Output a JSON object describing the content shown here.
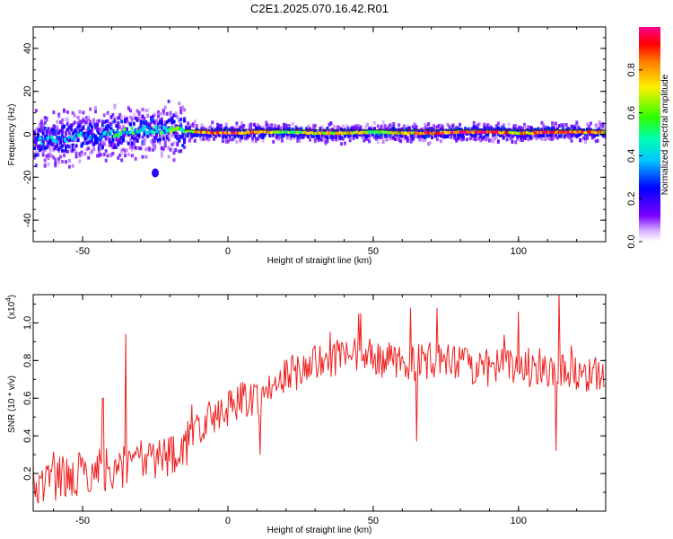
{
  "figure_title": "C2E1.2025.070.16.42.R01",
  "chart_data": [
    {
      "type": "heatmap",
      "xlabel": "Height of straight line (km)",
      "ylabel": "Frequency (Hz)",
      "xlim": [
        -67,
        130
      ],
      "ylim": [
        -50,
        50
      ],
      "xticks": [
        -50,
        0,
        50,
        100
      ],
      "yticks": [
        -40,
        -20,
        0,
        20,
        40
      ],
      "colorbar": {
        "label": "Normalized spectral amplitude",
        "range": [
          0,
          1
        ],
        "ticks": [
          "0.0",
          "0.2",
          "0.4",
          "0.6",
          "0.8"
        ],
        "tick_values": [
          0,
          0.2,
          0.4,
          0.6,
          0.8
        ]
      },
      "ridge": {
        "x": [
          -67,
          -60,
          -50,
          -40,
          -35,
          -30,
          -25,
          -20,
          -15,
          -10,
          0,
          10,
          20,
          30,
          40,
          50,
          60,
          70,
          80,
          90,
          100,
          110,
          120,
          130
        ],
        "frequency": [
          -3,
          -2,
          -1,
          0,
          1,
          2,
          2,
          2,
          1.5,
          1,
          0.5,
          1,
          1,
          0.5,
          0.5,
          1,
          0.5,
          0.5,
          1,
          1,
          0.5,
          1,
          1,
          1
        ],
        "amplitude": [
          0.3,
          0.3,
          0.35,
          0.4,
          0.45,
          0.45,
          0.5,
          0.55,
          0.6,
          0.75,
          0.9,
          0.8,
          0.55,
          0.7,
          0.75,
          0.6,
          0.75,
          0.8,
          0.9,
          0.95,
          0.7,
          0.95,
          0.85,
          0.7
        ]
      },
      "outliers": [
        {
          "x": -25,
          "frequency": -18,
          "amplitude": 0.2
        }
      ],
      "reference_line": {
        "frequency": 2
      }
    },
    {
      "type": "line",
      "xlabel": "Height of straight line (km)",
      "ylabel": "SNR (10 * v/v)",
      "y_multiplier": "(x10",
      "y_multiplier_exp": "4",
      "y_multiplier_close": ")",
      "xlim": [
        -67,
        130
      ],
      "ylim": [
        0,
        1.15
      ],
      "xticks": [
        -50,
        0,
        50,
        100
      ],
      "yticks": [
        0.2,
        0.4,
        0.6,
        0.8,
        1.0
      ],
      "ytick_labels": [
        "0.2",
        "0.4",
        "0.6",
        "0.8",
        "1.0"
      ],
      "line_color": "#ee2222",
      "series": [
        {
          "trend_x": [
            -67,
            -55,
            -45,
            -35,
            -25,
            -15,
            -10,
            -5,
            0,
            5,
            10,
            15,
            20,
            30,
            40,
            50,
            60,
            70,
            80,
            90,
            100,
            110,
            120,
            130
          ],
          "trend_y": [
            0.14,
            0.18,
            0.22,
            0.24,
            0.28,
            0.33,
            0.45,
            0.5,
            0.55,
            0.6,
            0.6,
            0.65,
            0.72,
            0.78,
            0.82,
            0.82,
            0.78,
            0.8,
            0.78,
            0.76,
            0.78,
            0.76,
            0.74,
            0.72
          ],
          "spikes": [
            {
              "x": -35,
              "y": 0.94
            },
            {
              "x": -43,
              "y": 0.6
            },
            {
              "x": 30,
              "y": 0.88
            },
            {
              "x": 45,
              "y": 1.05
            },
            {
              "x": 63,
              "y": 1.08
            },
            {
              "x": 72,
              "y": 1.08
            },
            {
              "x": 100,
              "y": 1.06
            },
            {
              "x": 114,
              "y": 1.16
            },
            {
              "x": 113,
              "y": 0.32
            },
            {
              "x": 65,
              "y": 0.37
            },
            {
              "x": 11,
              "y": 0.3
            }
          ]
        }
      ]
    }
  ]
}
